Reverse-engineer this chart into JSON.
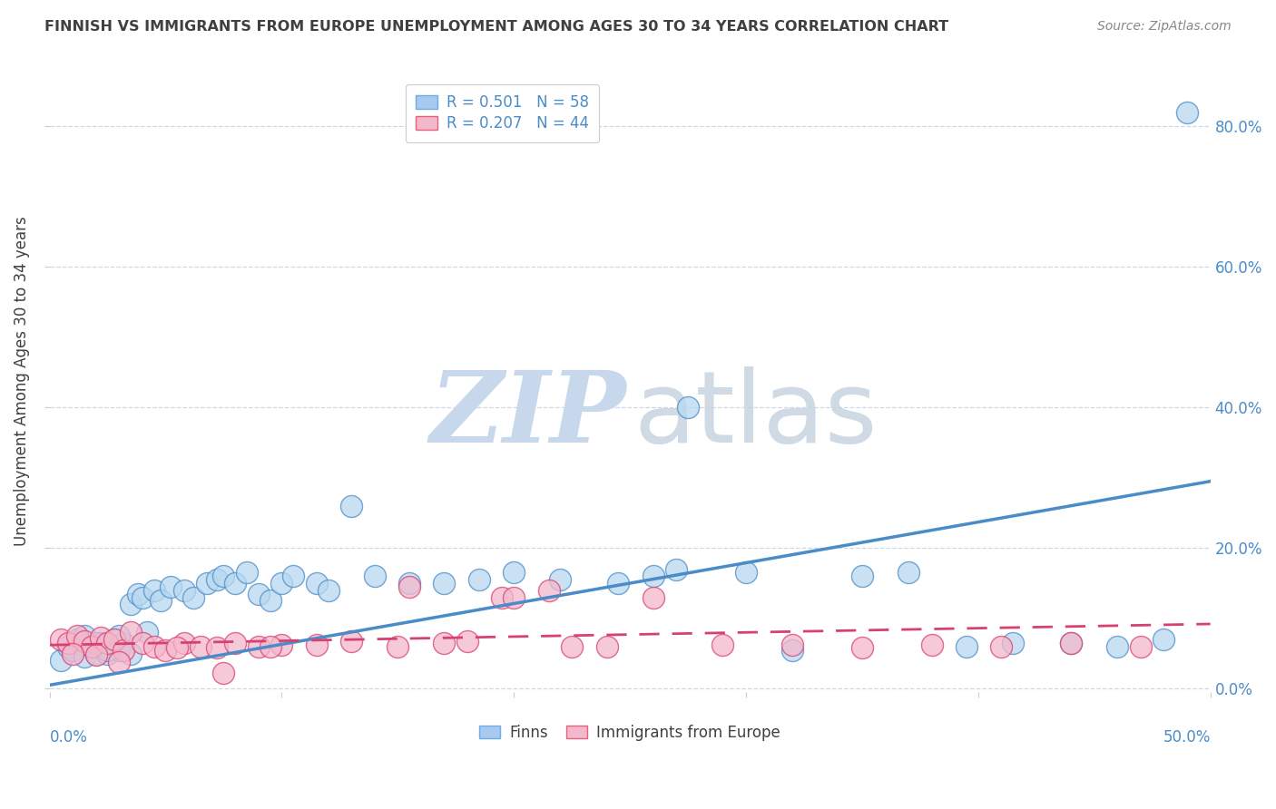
{
  "title": "FINNISH VS IMMIGRANTS FROM EUROPE UNEMPLOYMENT AMONG AGES 30 TO 34 YEARS CORRELATION CHART",
  "source": "Source: ZipAtlas.com",
  "ylabel": "Unemployment Among Ages 30 to 34 years",
  "y_tick_labels": [
    "0.0%",
    "20.0%",
    "40.0%",
    "60.0%",
    "80.0%"
  ],
  "y_tick_values": [
    0.0,
    0.2,
    0.4,
    0.6,
    0.8
  ],
  "xlim": [
    0.0,
    0.5
  ],
  "ylim": [
    -0.005,
    0.88
  ],
  "legend_r_n": [
    {
      "label": "R = 0.501   N = 58",
      "color": "#a8c8f0",
      "edge": "#6aaee8"
    },
    {
      "label": "R = 0.207   N = 44",
      "color": "#f4b8cc",
      "edge": "#e8607a"
    }
  ],
  "finns_scatter_x": [
    0.005,
    0.008,
    0.01,
    0.012,
    0.015,
    0.018,
    0.02,
    0.022,
    0.025,
    0.028,
    0.03,
    0.032,
    0.035,
    0.015,
    0.02,
    0.025,
    0.03,
    0.035,
    0.038,
    0.04,
    0.042,
    0.045,
    0.048,
    0.052,
    0.058,
    0.062,
    0.068,
    0.072,
    0.075,
    0.08,
    0.085,
    0.09,
    0.095,
    0.1,
    0.105,
    0.115,
    0.12,
    0.13,
    0.14,
    0.155,
    0.17,
    0.185,
    0.2,
    0.22,
    0.245,
    0.26,
    0.275,
    0.3,
    0.32,
    0.35,
    0.37,
    0.395,
    0.415,
    0.44,
    0.46,
    0.48,
    0.27,
    0.49
  ],
  "finns_scatter_y": [
    0.04,
    0.06,
    0.055,
    0.07,
    0.045,
    0.06,
    0.05,
    0.065,
    0.05,
    0.07,
    0.055,
    0.065,
    0.05,
    0.075,
    0.065,
    0.055,
    0.075,
    0.12,
    0.135,
    0.13,
    0.08,
    0.14,
    0.125,
    0.145,
    0.14,
    0.13,
    0.15,
    0.155,
    0.16,
    0.15,
    0.165,
    0.135,
    0.125,
    0.15,
    0.16,
    0.15,
    0.14,
    0.26,
    0.16,
    0.15,
    0.15,
    0.155,
    0.165,
    0.155,
    0.15,
    0.16,
    0.4,
    0.165,
    0.055,
    0.16,
    0.165,
    0.06,
    0.065,
    0.065,
    0.06,
    0.07,
    0.17,
    0.82
  ],
  "immigrants_scatter_x": [
    0.005,
    0.008,
    0.012,
    0.015,
    0.018,
    0.022,
    0.025,
    0.028,
    0.032,
    0.035,
    0.04,
    0.045,
    0.05,
    0.058,
    0.065,
    0.072,
    0.08,
    0.09,
    0.1,
    0.115,
    0.13,
    0.15,
    0.17,
    0.195,
    0.215,
    0.24,
    0.26,
    0.29,
    0.32,
    0.35,
    0.38,
    0.41,
    0.44,
    0.47,
    0.01,
    0.02,
    0.03,
    0.055,
    0.075,
    0.095,
    0.155,
    0.18,
    0.2,
    0.225
  ],
  "immigrants_scatter_y": [
    0.07,
    0.065,
    0.075,
    0.068,
    0.06,
    0.072,
    0.065,
    0.07,
    0.055,
    0.08,
    0.065,
    0.06,
    0.055,
    0.065,
    0.06,
    0.058,
    0.065,
    0.06,
    0.062,
    0.062,
    0.068,
    0.06,
    0.065,
    0.13,
    0.14,
    0.06,
    0.13,
    0.062,
    0.062,
    0.058,
    0.062,
    0.06,
    0.065,
    0.06,
    0.05,
    0.048,
    0.038,
    0.058,
    0.022,
    0.06,
    0.145,
    0.068,
    0.13,
    0.06
  ],
  "finns_line_x": [
    0.0,
    0.5
  ],
  "finns_line_y": [
    0.005,
    0.295
  ],
  "immigrants_line_x": [
    0.0,
    0.5
  ],
  "immigrants_line_y": [
    0.062,
    0.092
  ],
  "finns_color": "#4a8cc8",
  "finns_scatter_face": "#b8d8f0",
  "finns_scatter_edge": "#4a8cc8",
  "immigrants_color": "#d84070",
  "immigrants_scatter_face": "#f4b8cc",
  "immigrants_scatter_edge": "#d84070",
  "background_color": "#ffffff",
  "grid_color": "#c8d4e4",
  "watermark_zip_color": "#c8d8ec",
  "watermark_atlas_color": "#c8d4e0",
  "title_color": "#404040",
  "source_color": "#888888",
  "tick_label_color": "#4a8cc8",
  "ylabel_color": "#404040"
}
